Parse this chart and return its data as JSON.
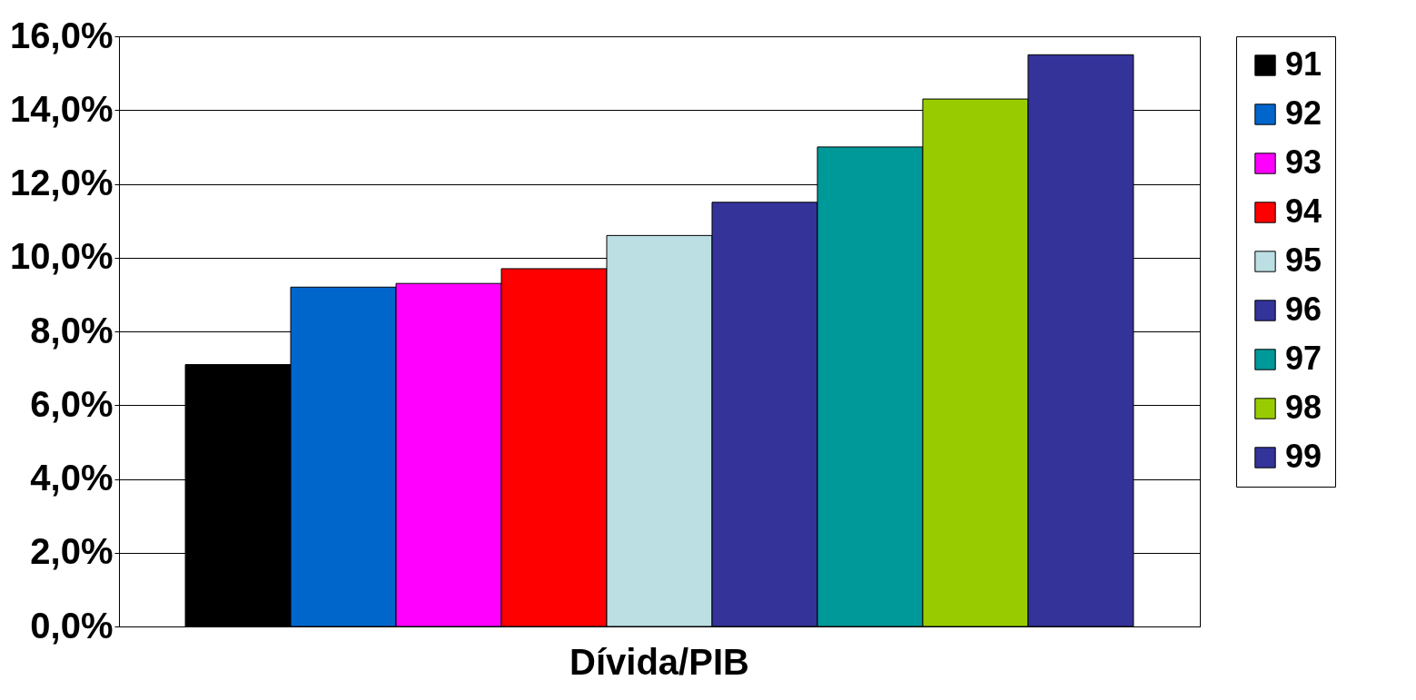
{
  "chart_data": {
    "type": "bar",
    "categories": [
      "Dívida/PIB"
    ],
    "series": [
      {
        "name": "91",
        "color": "#000000",
        "values": [
          7.1
        ]
      },
      {
        "name": "92",
        "color": "#0066cc",
        "values": [
          9.2
        ]
      },
      {
        "name": "93",
        "color": "#ff00ff",
        "values": [
          9.3
        ]
      },
      {
        "name": "94",
        "color": "#ff0000",
        "values": [
          9.7
        ]
      },
      {
        "name": "95",
        "color": "#bbdfe3",
        "values": [
          10.6
        ]
      },
      {
        "name": "96",
        "color": "#333399",
        "values": [
          11.5
        ]
      },
      {
        "name": "97",
        "color": "#009999",
        "values": [
          13.0
        ]
      },
      {
        "name": "98",
        "color": "#99cc00",
        "values": [
          14.3
        ]
      },
      {
        "name": "99",
        "color": "#333399",
        "values": [
          15.5
        ]
      }
    ],
    "ylim": [
      0,
      16
    ],
    "yticks": [
      {
        "value": 0,
        "label": "0,0%"
      },
      {
        "value": 2,
        "label": "2,0%"
      },
      {
        "value": 4,
        "label": "4,0%"
      },
      {
        "value": 6,
        "label": "6,0%"
      },
      {
        "value": 8,
        "label": "8,0%"
      },
      {
        "value": 10,
        "label": "10,0%"
      },
      {
        "value": 12,
        "label": "12,0%"
      },
      {
        "value": 14,
        "label": "14,0%"
      },
      {
        "value": 16,
        "label": "16,0%"
      }
    ],
    "grid": "y",
    "legend": "right"
  }
}
